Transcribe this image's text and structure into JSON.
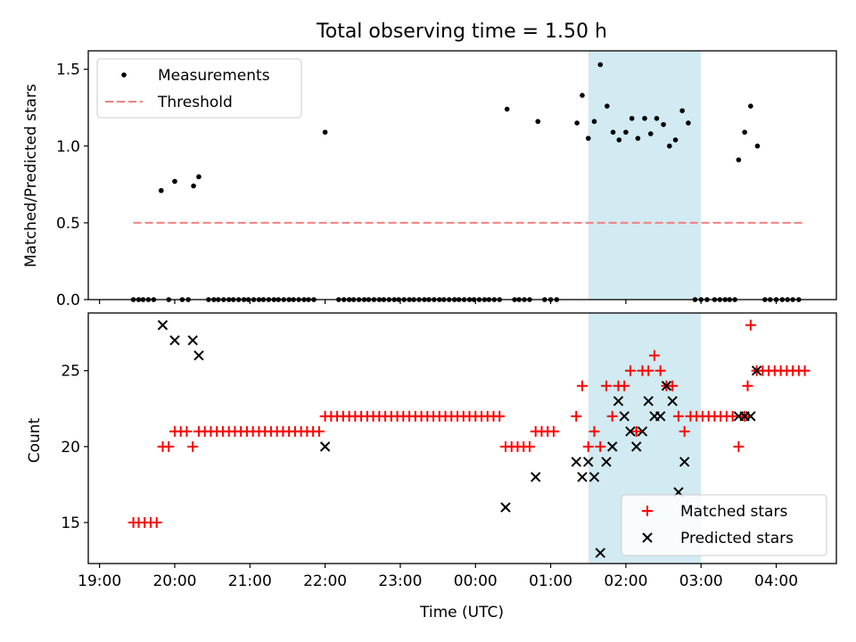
{
  "figure": {
    "title": "Total observing time = 1.50 h",
    "xlabel": "Time (UTC)",
    "x_tick_labels": [
      "19:00",
      "20:00",
      "21:00",
      "22:00",
      "23:00",
      "00:00",
      "01:00",
      "02:00",
      "03:00",
      "04:00"
    ],
    "shaded_span_color": "#add8e6"
  },
  "chart_data": [
    {
      "type": "scatter",
      "ylabel": "Matched/Predicted stars",
      "x_unit": "hours since 19:00 UTC",
      "xlim": [
        -0.15,
        9.8
      ],
      "ylim": [
        0,
        1.62
      ],
      "yticks": [
        0.0,
        0.5,
        1.0,
        1.5
      ],
      "y_tick_labels": [
        "0.0",
        "0.5",
        "1.0",
        "1.5"
      ],
      "grid": false,
      "legend": "upper left",
      "shaded_span": [
        6.5,
        8.0
      ],
      "threshold": {
        "name": "Threshold",
        "value": 0.5,
        "x_range": [
          0.45,
          9.35
        ],
        "color": "#f08080"
      },
      "series": [
        {
          "name": "Measurements",
          "color": "#000000",
          "points": [
            [
              0.45,
              0
            ],
            [
              0.52,
              0
            ],
            [
              0.58,
              0
            ],
            [
              0.65,
              0
            ],
            [
              0.72,
              0
            ],
            [
              0.82,
              0.71
            ],
            [
              0.92,
              0
            ],
            [
              1.0,
              0.77
            ],
            [
              1.1,
              0
            ],
            [
              1.18,
              0
            ],
            [
              1.25,
              0.74
            ],
            [
              1.32,
              0.8
            ],
            [
              1.45,
              0
            ],
            [
              1.52,
              0
            ],
            [
              1.58,
              0
            ],
            [
              1.65,
              0
            ],
            [
              1.72,
              0
            ],
            [
              1.78,
              0
            ],
            [
              1.85,
              0
            ],
            [
              1.92,
              0
            ],
            [
              1.98,
              0
            ],
            [
              2.05,
              0
            ],
            [
              2.12,
              0
            ],
            [
              2.18,
              0
            ],
            [
              2.25,
              0
            ],
            [
              2.32,
              0
            ],
            [
              2.38,
              0
            ],
            [
              2.45,
              0
            ],
            [
              2.52,
              0
            ],
            [
              2.58,
              0
            ],
            [
              2.65,
              0
            ],
            [
              2.72,
              0
            ],
            [
              2.78,
              0
            ],
            [
              2.85,
              0
            ],
            [
              3.0,
              1.09
            ],
            [
              3.18,
              0
            ],
            [
              3.25,
              0
            ],
            [
              3.32,
              0
            ],
            [
              3.38,
              0
            ],
            [
              3.45,
              0
            ],
            [
              3.52,
              0
            ],
            [
              3.58,
              0
            ],
            [
              3.65,
              0
            ],
            [
              3.72,
              0
            ],
            [
              3.78,
              0
            ],
            [
              3.85,
              0
            ],
            [
              3.92,
              0
            ],
            [
              3.98,
              0
            ],
            [
              4.05,
              0
            ],
            [
              4.12,
              0
            ],
            [
              4.18,
              0
            ],
            [
              4.25,
              0
            ],
            [
              4.32,
              0
            ],
            [
              4.38,
              0
            ],
            [
              4.45,
              0
            ],
            [
              4.52,
              0
            ],
            [
              4.58,
              0
            ],
            [
              4.65,
              0
            ],
            [
              4.72,
              0
            ],
            [
              4.78,
              0
            ],
            [
              4.85,
              0
            ],
            [
              4.92,
              0
            ],
            [
              4.98,
              0
            ],
            [
              5.05,
              0
            ],
            [
              5.12,
              0
            ],
            [
              5.18,
              0
            ],
            [
              5.25,
              0
            ],
            [
              5.32,
              0
            ],
            [
              5.42,
              1.24
            ],
            [
              5.52,
              0
            ],
            [
              5.58,
              0
            ],
            [
              5.65,
              0
            ],
            [
              5.72,
              0
            ],
            [
              5.83,
              1.16
            ],
            [
              5.92,
              0
            ],
            [
              6.0,
              0
            ],
            [
              6.08,
              0
            ],
            [
              6.35,
              1.15
            ],
            [
              6.42,
              1.33
            ],
            [
              6.5,
              1.05
            ],
            [
              6.58,
              1.16
            ],
            [
              6.66,
              1.53
            ],
            [
              6.75,
              1.26
            ],
            [
              6.83,
              1.09
            ],
            [
              6.91,
              1.04
            ],
            [
              7.0,
              1.09
            ],
            [
              7.08,
              1.18
            ],
            [
              7.16,
              1.05
            ],
            [
              7.25,
              1.18
            ],
            [
              7.33,
              1.08
            ],
            [
              7.41,
              1.18
            ],
            [
              7.5,
              1.14
            ],
            [
              7.58,
              1.0
            ],
            [
              7.66,
              1.04
            ],
            [
              7.75,
              1.23
            ],
            [
              7.83,
              1.15
            ],
            [
              7.92,
              0
            ],
            [
              8.0,
              0
            ],
            [
              8.08,
              0
            ],
            [
              8.18,
              0
            ],
            [
              8.25,
              0
            ],
            [
              8.32,
              0
            ],
            [
              8.38,
              0
            ],
            [
              8.45,
              0
            ],
            [
              8.5,
              0.91
            ],
            [
              8.58,
              1.09
            ],
            [
              8.66,
              1.26
            ],
            [
              8.75,
              1.0
            ],
            [
              8.85,
              0
            ],
            [
              8.92,
              0
            ],
            [
              9.0,
              0
            ],
            [
              9.08,
              0
            ],
            [
              9.15,
              0
            ],
            [
              9.22,
              0
            ],
            [
              9.3,
              0
            ]
          ]
        }
      ]
    },
    {
      "type": "scatter",
      "ylabel": "Count",
      "x_unit": "hours since 19:00 UTC",
      "xlim": [
        -0.15,
        9.8
      ],
      "ylim": [
        12.3,
        28.8
      ],
      "yticks": [
        15,
        20,
        25
      ],
      "y_tick_labels": [
        "15",
        "20",
        "25"
      ],
      "grid": false,
      "legend": "lower right",
      "shaded_span": [
        6.5,
        8.0
      ],
      "series": [
        {
          "name": "Matched stars",
          "marker": "+",
          "color": "#ff0000",
          "points": [
            [
              0.45,
              15
            ],
            [
              0.52,
              15
            ],
            [
              0.6,
              15
            ],
            [
              0.68,
              15
            ],
            [
              0.76,
              15
            ],
            [
              0.84,
              20
            ],
            [
              0.92,
              20
            ],
            [
              1.0,
              21
            ],
            [
              1.08,
              21
            ],
            [
              1.16,
              21
            ],
            [
              1.24,
              20
            ],
            [
              1.32,
              21
            ],
            [
              1.4,
              21
            ],
            [
              1.48,
              21
            ],
            [
              1.56,
              21
            ],
            [
              1.64,
              21
            ],
            [
              1.72,
              21
            ],
            [
              1.8,
              21
            ],
            [
              1.88,
              21
            ],
            [
              1.96,
              21
            ],
            [
              2.04,
              21
            ],
            [
              2.12,
              21
            ],
            [
              2.2,
              21
            ],
            [
              2.28,
              21
            ],
            [
              2.36,
              21
            ],
            [
              2.44,
              21
            ],
            [
              2.52,
              21
            ],
            [
              2.6,
              21
            ],
            [
              2.68,
              21
            ],
            [
              2.76,
              21
            ],
            [
              2.84,
              21
            ],
            [
              2.92,
              21
            ],
            [
              3.0,
              22
            ],
            [
              3.08,
              22
            ],
            [
              3.16,
              22
            ],
            [
              3.24,
              22
            ],
            [
              3.32,
              22
            ],
            [
              3.4,
              22
            ],
            [
              3.48,
              22
            ],
            [
              3.56,
              22
            ],
            [
              3.64,
              22
            ],
            [
              3.72,
              22
            ],
            [
              3.8,
              22
            ],
            [
              3.88,
              22
            ],
            [
              3.96,
              22
            ],
            [
              4.04,
              22
            ],
            [
              4.12,
              22
            ],
            [
              4.2,
              22
            ],
            [
              4.28,
              22
            ],
            [
              4.36,
              22
            ],
            [
              4.44,
              22
            ],
            [
              4.52,
              22
            ],
            [
              4.6,
              22
            ],
            [
              4.68,
              22
            ],
            [
              4.76,
              22
            ],
            [
              4.84,
              22
            ],
            [
              4.92,
              22
            ],
            [
              5.0,
              22
            ],
            [
              5.08,
              22
            ],
            [
              5.16,
              22
            ],
            [
              5.24,
              22
            ],
            [
              5.32,
              22
            ],
            [
              5.4,
              20
            ],
            [
              5.48,
              20
            ],
            [
              5.56,
              20
            ],
            [
              5.64,
              20
            ],
            [
              5.72,
              20
            ],
            [
              5.8,
              21
            ],
            [
              5.88,
              21
            ],
            [
              5.96,
              21
            ],
            [
              6.04,
              21
            ],
            [
              6.34,
              22
            ],
            [
              6.42,
              24
            ],
            [
              6.5,
              20
            ],
            [
              6.58,
              21
            ],
            [
              6.66,
              20
            ],
            [
              6.74,
              24
            ],
            [
              6.82,
              22
            ],
            [
              6.9,
              24
            ],
            [
              6.98,
              24
            ],
            [
              7.06,
              25
            ],
            [
              7.14,
              21
            ],
            [
              7.22,
              25
            ],
            [
              7.3,
              25
            ],
            [
              7.38,
              26
            ],
            [
              7.46,
              25
            ],
            [
              7.54,
              24
            ],
            [
              7.62,
              24
            ],
            [
              7.7,
              22
            ],
            [
              7.78,
              21
            ],
            [
              7.86,
              22
            ],
            [
              7.94,
              22
            ],
            [
              8.02,
              22
            ],
            [
              8.1,
              22
            ],
            [
              8.18,
              22
            ],
            [
              8.26,
              22
            ],
            [
              8.34,
              22
            ],
            [
              8.42,
              22
            ],
            [
              8.5,
              20
            ],
            [
              8.58,
              22
            ],
            [
              8.62,
              24
            ],
            [
              8.66,
              28
            ],
            [
              8.74,
              25
            ],
            [
              8.82,
              25
            ],
            [
              8.9,
              25
            ],
            [
              8.98,
              25
            ],
            [
              9.06,
              25
            ],
            [
              9.14,
              25
            ],
            [
              9.22,
              25
            ],
            [
              9.3,
              25
            ],
            [
              9.38,
              25
            ]
          ]
        },
        {
          "name": "Predicted stars",
          "marker": "x",
          "color": "#000000",
          "points": [
            [
              0.84,
              28
            ],
            [
              1.0,
              27
            ],
            [
              1.24,
              27
            ],
            [
              1.32,
              26
            ],
            [
              3.0,
              20
            ],
            [
              5.4,
              16
            ],
            [
              5.8,
              18
            ],
            [
              6.34,
              19
            ],
            [
              6.42,
              18
            ],
            [
              6.5,
              19
            ],
            [
              6.58,
              18
            ],
            [
              6.66,
              13
            ],
            [
              6.74,
              19
            ],
            [
              6.82,
              20
            ],
            [
              6.9,
              23
            ],
            [
              6.98,
              22
            ],
            [
              7.06,
              21
            ],
            [
              7.14,
              20
            ],
            [
              7.22,
              21
            ],
            [
              7.3,
              23
            ],
            [
              7.38,
              22
            ],
            [
              7.46,
              22
            ],
            [
              7.54,
              24
            ],
            [
              7.62,
              23
            ],
            [
              7.7,
              17
            ],
            [
              7.78,
              19
            ],
            [
              8.5,
              22
            ],
            [
              8.58,
              22
            ],
            [
              8.66,
              22
            ],
            [
              8.74,
              25
            ]
          ]
        }
      ]
    }
  ]
}
